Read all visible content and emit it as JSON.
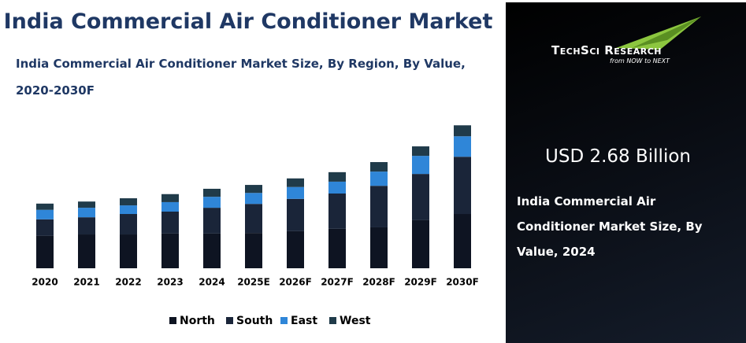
{
  "title": "India Commercial Air Conditioner Market",
  "chart_data": {
    "type": "bar",
    "stacked": true,
    "subtitle": "India Commercial Air Conditioner Market Size, By Region, By Value, 2020-2030F",
    "categories": [
      "2020",
      "2021",
      "2022",
      "2023",
      "2024",
      "2025E",
      "2026F",
      "2027F",
      "2028F",
      "2029F",
      "2030F"
    ],
    "series": [
      {
        "name": "North",
        "color": "#0e1422",
        "values": [
          1.09,
          1.14,
          1.14,
          1.17,
          1.17,
          1.19,
          1.25,
          1.33,
          1.38,
          1.62,
          1.83
        ]
      },
      {
        "name": "South",
        "color": "#1a2539",
        "values": [
          0.56,
          0.58,
          0.69,
          0.74,
          0.87,
          0.98,
          1.09,
          1.19,
          1.4,
          1.56,
          1.93
        ]
      },
      {
        "name": "East",
        "color": "#2f86d8",
        "values": [
          0.32,
          0.32,
          0.29,
          0.32,
          0.37,
          0.37,
          0.4,
          0.4,
          0.48,
          0.61,
          0.69
        ]
      },
      {
        "name": "West",
        "color": "#203b4a",
        "values": [
          0.21,
          0.21,
          0.24,
          0.27,
          0.27,
          0.27,
          0.29,
          0.32,
          0.32,
          0.32,
          0.37
        ]
      }
    ]
  },
  "highlight": {
    "value": "USD 2.68 Billion",
    "label": "India Commercial Air Conditioner Market Size, By Value, 2024"
  },
  "logo": {
    "name": "TechSci Research",
    "tagline": "from NOW to NEXT"
  }
}
